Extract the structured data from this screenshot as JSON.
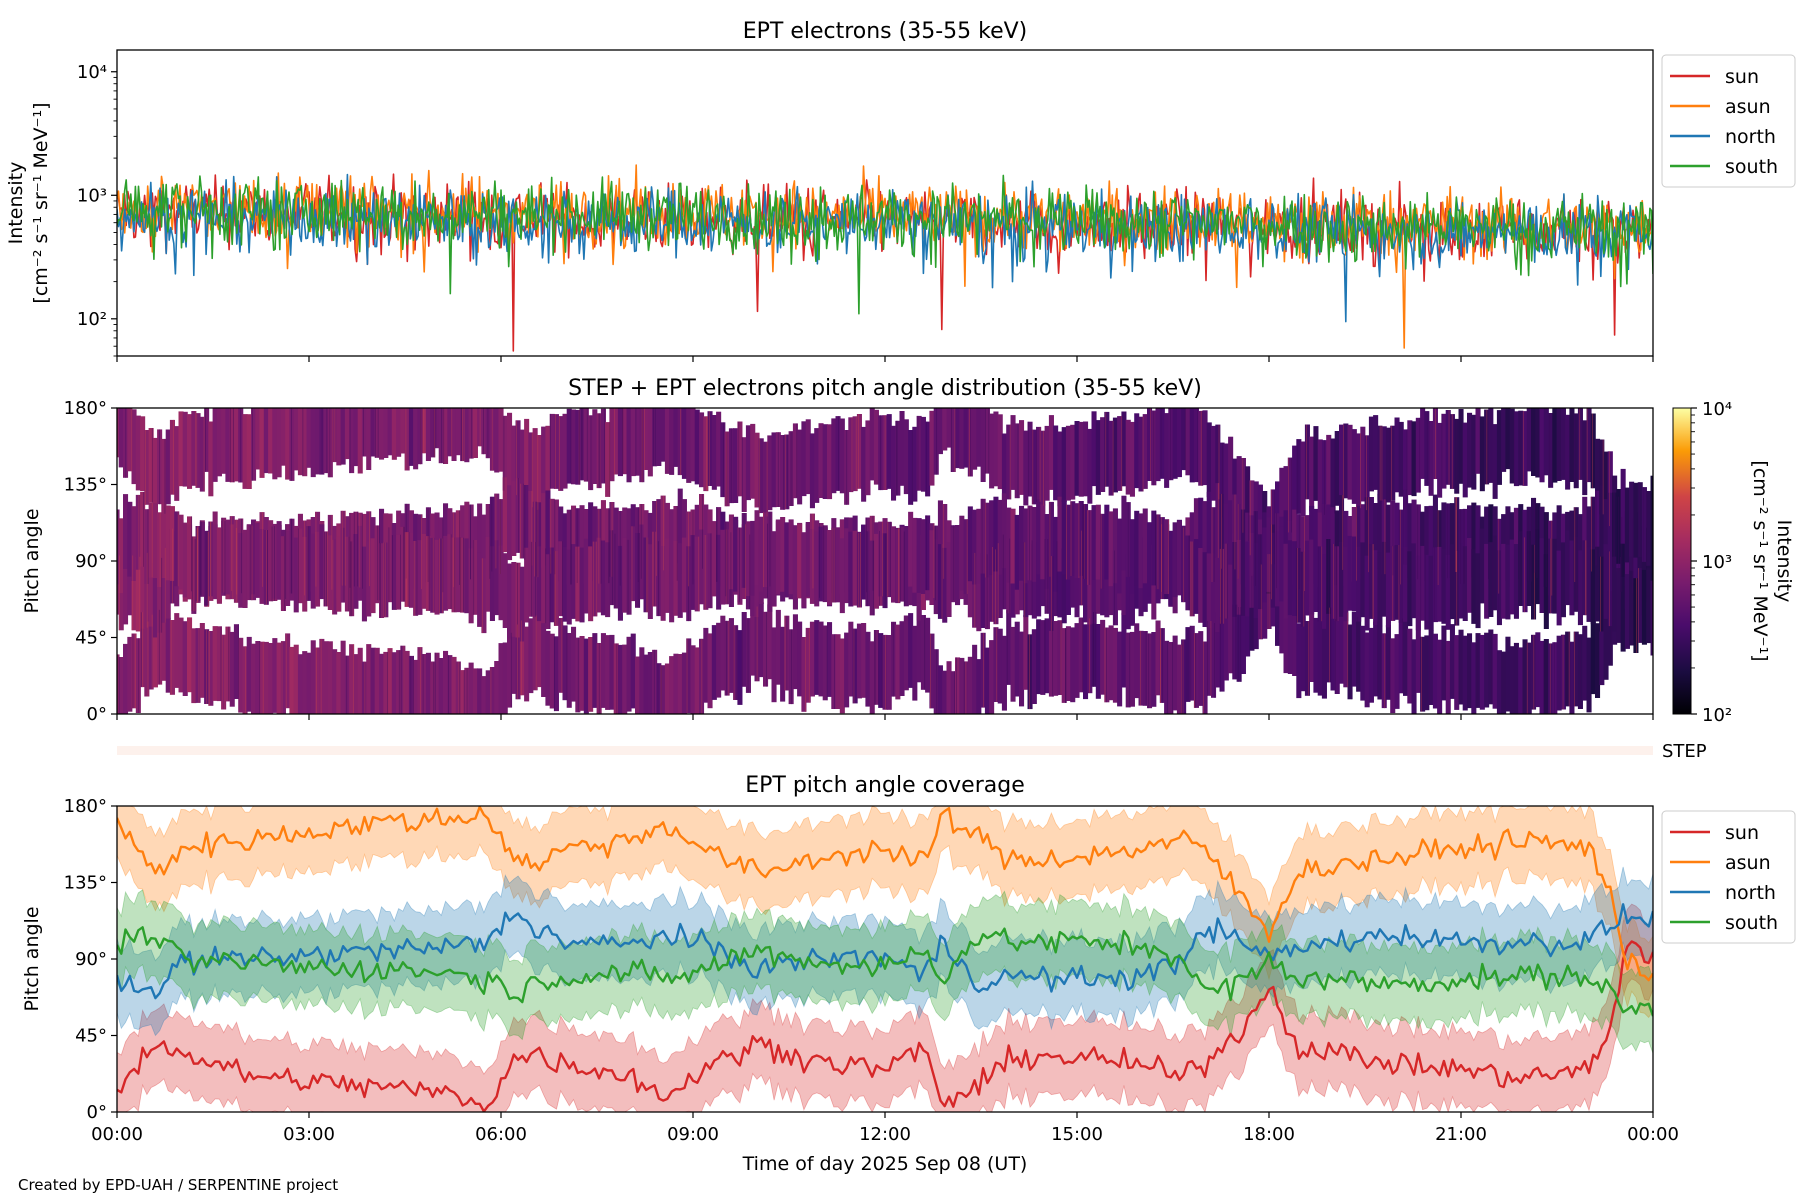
{
  "chart_data": [
    {
      "type": "line",
      "title": "EPT electrons (35-55 keV)",
      "ylabel_line1": "Intensity",
      "ylabel_line2": "[cm⁻² s⁻¹ sr⁻¹ MeV⁻¹]",
      "yscale": "log",
      "ylim": [
        50,
        15000
      ],
      "yticks": [
        {
          "value": 100,
          "label": "10²"
        },
        {
          "value": 1000,
          "label": "10³"
        },
        {
          "value": 10000,
          "label": "10⁴"
        }
      ],
      "xlim_hours": [
        0,
        24
      ],
      "legend_position": "outside-right-top",
      "series": [
        {
          "name": "sun",
          "color": "#d62728",
          "baseline_start": 750,
          "baseline_end": 520,
          "notable_dips": [
            [
              6.2,
              55
            ],
            [
              10.0,
              115
            ],
            [
              12.9,
              82
            ],
            [
              23.4,
              74
            ]
          ]
        },
        {
          "name": "asun",
          "color": "#ff7f0e",
          "baseline_start": 820,
          "baseline_end": 560,
          "notable_dips": [
            [
              4.8,
              240
            ],
            [
              17.5,
              180
            ],
            [
              20.1,
              58
            ]
          ]
        },
        {
          "name": "north",
          "color": "#1f77b4",
          "baseline_start": 700,
          "baseline_end": 500,
          "notable_dips": [
            [
              14.0,
              200
            ],
            [
              19.2,
              95
            ]
          ]
        },
        {
          "name": "south",
          "color": "#2ca02c",
          "baseline_start": 780,
          "baseline_end": 540,
          "notable_dips": [
            [
              5.2,
              160
            ],
            [
              11.6,
              110
            ],
            [
              22.5,
              110
            ]
          ]
        }
      ]
    },
    {
      "type": "heatmap",
      "title": "STEP + EPT electrons pitch angle distribution (35-55 keV)",
      "ylabel": "Pitch angle",
      "ylim": [
        0,
        180
      ],
      "yticks": [
        {
          "value": 0,
          "label": "0°"
        },
        {
          "value": 45,
          "label": "45°"
        },
        {
          "value": 90,
          "label": "90°"
        },
        {
          "value": 135,
          "label": "135°"
        },
        {
          "value": 180,
          "label": "180°"
        }
      ],
      "xlim_hours": [
        0,
        24
      ],
      "colorbar": {
        "scale": "log",
        "range": [
          100,
          10000
        ],
        "colormap": "inferno",
        "ticks": [
          {
            "value": 100,
            "label": "10²"
          },
          {
            "value": 1000,
            "label": "10³"
          },
          {
            "value": 10000,
            "label": "10⁴"
          }
        ],
        "label_line1": "Intensity",
        "label_line2": "[cm⁻² s⁻¹ sr⁻¹ MeV⁻¹]"
      },
      "intensity_start": 900,
      "intensity_end": 250,
      "coverage_source": "EPT pitch angle coverage (sun, asun, north, south)"
    },
    {
      "type": "heatmap",
      "label": "STEP",
      "xlim_hours": [
        0,
        24
      ],
      "note": "STEP strip with near-empty pale fill"
    },
    {
      "type": "line",
      "title": "EPT pitch angle coverage",
      "ylabel": "Pitch angle",
      "ylim": [
        0,
        180
      ],
      "yticks": [
        {
          "value": 0,
          "label": "0°"
        },
        {
          "value": 45,
          "label": "45°"
        },
        {
          "value": 90,
          "label": "90°"
        },
        {
          "value": 135,
          "label": "135°"
        },
        {
          "value": 180,
          "label": "180°"
        }
      ],
      "xlim_hours": [
        0,
        24
      ],
      "xlabel": "Time of day 2025 Sep 08 (UT)",
      "xticks": [
        {
          "value": 0,
          "label": "00:00"
        },
        {
          "value": 3,
          "label": "03:00"
        },
        {
          "value": 6,
          "label": "06:00"
        },
        {
          "value": 9,
          "label": "09:00"
        },
        {
          "value": 12,
          "label": "12:00"
        },
        {
          "value": 15,
          "label": "15:00"
        },
        {
          "value": 18,
          "label": "18:00"
        },
        {
          "value": 21,
          "label": "21:00"
        },
        {
          "value": 24,
          "label": "00:00"
        }
      ],
      "legend_position": "outside-right-top",
      "band_halfwidth_deg": 22,
      "series": [
        {
          "name": "sun",
          "color": "#d62728",
          "points": [
            [
              0,
              12
            ],
            [
              0.6,
              42
            ],
            [
              1,
              35
            ],
            [
              2,
              22
            ],
            [
              3,
              18
            ],
            [
              4,
              15
            ],
            [
              5,
              12
            ],
            [
              5.8,
              5
            ],
            [
              6.2,
              30
            ],
            [
              6.5,
              35
            ],
            [
              7,
              28
            ],
            [
              8,
              22
            ],
            [
              8.6,
              8
            ],
            [
              9,
              22
            ],
            [
              10,
              40
            ],
            [
              11,
              30
            ],
            [
              12,
              25
            ],
            [
              12.6,
              38
            ],
            [
              12.9,
              5
            ],
            [
              13.5,
              15
            ],
            [
              14,
              33
            ],
            [
              15,
              32
            ],
            [
              16,
              28
            ],
            [
              16.6,
              20
            ],
            [
              17,
              30
            ],
            [
              17.5,
              45
            ],
            [
              18,
              75
            ],
            [
              18.4,
              40
            ],
            [
              19,
              35
            ],
            [
              20,
              28
            ],
            [
              21,
              25
            ],
            [
              22,
              20
            ],
            [
              23,
              25
            ],
            [
              23.3,
              45
            ],
            [
              23.6,
              100
            ],
            [
              24,
              90
            ]
          ]
        },
        {
          "name": "asun",
          "color": "#ff7f0e",
          "points": [
            [
              0,
              170
            ],
            [
              0.6,
              140
            ],
            [
              1,
              155
            ],
            [
              2,
              160
            ],
            [
              3,
              165
            ],
            [
              4,
              170
            ],
            [
              5,
              172
            ],
            [
              5.8,
              175
            ],
            [
              6.2,
              150
            ],
            [
              6.5,
              145
            ],
            [
              7,
              155
            ],
            [
              8,
              160
            ],
            [
              8.6,
              170
            ],
            [
              9,
              158
            ],
            [
              10,
              140
            ],
            [
              11,
              150
            ],
            [
              12,
              155
            ],
            [
              12.6,
              145
            ],
            [
              12.9,
              175
            ],
            [
              13.5,
              160
            ],
            [
              14,
              148
            ],
            [
              15,
              150
            ],
            [
              16,
              155
            ],
            [
              16.6,
              160
            ],
            [
              17,
              155
            ],
            [
              17.5,
              130
            ],
            [
              18,
              105
            ],
            [
              18.4,
              140
            ],
            [
              19,
              145
            ],
            [
              20,
              150
            ],
            [
              21,
              155
            ],
            [
              22,
              160
            ],
            [
              23,
              155
            ],
            [
              23.3,
              135
            ],
            [
              23.6,
              85
            ],
            [
              24,
              80
            ]
          ]
        },
        {
          "name": "north",
          "color": "#1f77b4",
          "points": [
            [
              0,
              80
            ],
            [
              0.6,
              70
            ],
            [
              1,
              88
            ],
            [
              2,
              90
            ],
            [
              3,
              92
            ],
            [
              4,
              95
            ],
            [
              5,
              96
            ],
            [
              5.8,
              100
            ],
            [
              6.2,
              118
            ],
            [
              6.5,
              110
            ],
            [
              7,
              100
            ],
            [
              8,
              98
            ],
            [
              8.6,
              105
            ],
            [
              9,
              100
            ],
            [
              10,
              85
            ],
            [
              11,
              90
            ],
            [
              12,
              92
            ],
            [
              12.6,
              80
            ],
            [
              12.9,
              100
            ],
            [
              13.5,
              75
            ],
            [
              14,
              80
            ],
            [
              15,
              78
            ],
            [
              16,
              80
            ],
            [
              16.6,
              88
            ],
            [
              17,
              110
            ],
            [
              17.5,
              100
            ],
            [
              18,
              92
            ],
            [
              18.4,
              95
            ],
            [
              19,
              100
            ],
            [
              20,
              105
            ],
            [
              21,
              100
            ],
            [
              22,
              100
            ],
            [
              23,
              100
            ],
            [
              23.3,
              110
            ],
            [
              23.6,
              115
            ],
            [
              24,
              112
            ]
          ]
        },
        {
          "name": "south",
          "color": "#2ca02c",
          "points": [
            [
              0,
              100
            ],
            [
              0.6,
              105
            ],
            [
              1,
              88
            ],
            [
              2,
              88
            ],
            [
              3,
              85
            ],
            [
              4,
              84
            ],
            [
              5,
              83
            ],
            [
              5.8,
              78
            ],
            [
              6.2,
              70
            ],
            [
              6.5,
              75
            ],
            [
              7,
              80
            ],
            [
              8,
              82
            ],
            [
              8.6,
              78
            ],
            [
              9,
              82
            ],
            [
              10,
              95
            ],
            [
              11,
              88
            ],
            [
              12,
              85
            ],
            [
              12.6,
              95
            ],
            [
              12.9,
              80
            ],
            [
              13.5,
              105
            ],
            [
              14,
              100
            ],
            [
              15,
              100
            ],
            [
              16,
              98
            ],
            [
              16.6,
              92
            ],
            [
              17,
              70
            ],
            [
              17.5,
              75
            ],
            [
              18,
              88
            ],
            [
              18.4,
              80
            ],
            [
              19,
              78
            ],
            [
              20,
              75
            ],
            [
              21,
              78
            ],
            [
              22,
              80
            ],
            [
              23,
              80
            ],
            [
              23.3,
              70
            ],
            [
              23.6,
              60
            ],
            [
              24,
              62
            ]
          ]
        }
      ]
    }
  ],
  "credit": "Created by EPD-UAH / SERPENTINE project"
}
